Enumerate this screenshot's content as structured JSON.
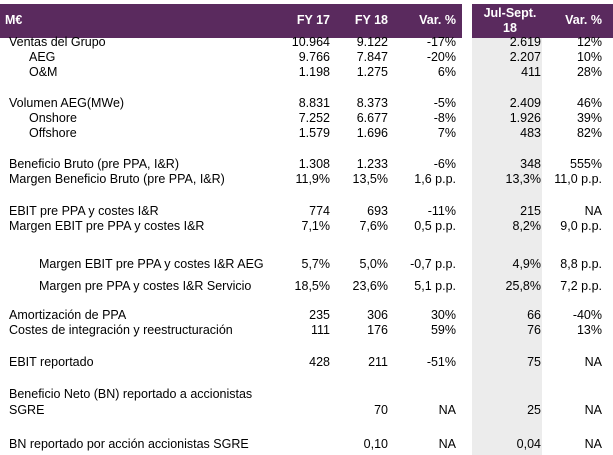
{
  "header": {
    "label": "M€",
    "fy17": "FY 17",
    "fy18": "FY 18",
    "var": "Var. %",
    "q_line1": "Jul-Sept.",
    "q_line2": "18",
    "q_var": "Var. %"
  },
  "rows": [
    {
      "indent": 0,
      "label": "Ventas del Grupo",
      "fy17": "10.964",
      "fy18": "9.122",
      "var": "-17%",
      "q": "2.619",
      "qvar": "12%"
    },
    {
      "indent": 1,
      "label": "AEG",
      "fy17": "9.766",
      "fy18": "7.847",
      "var": "-20%",
      "q": "2.207",
      "qvar": "10%"
    },
    {
      "indent": 1,
      "label": "O&M",
      "fy17": "1.198",
      "fy18": "1.275",
      "var": "6%",
      "q": "411",
      "qvar": "28%"
    },
    {
      "indent": 0,
      "label": "Volumen AEG(MWe)",
      "fy17": "8.831",
      "fy18": "8.373",
      "var": "-5%",
      "q": "2.409",
      "qvar": "46%"
    },
    {
      "indent": 1,
      "label": "Onshore",
      "fy17": "7.252",
      "fy18": "6.677",
      "var": "-8%",
      "q": "1.926",
      "qvar": "39%"
    },
    {
      "indent": 1,
      "label": "Offshore",
      "fy17": "1.579",
      "fy18": "1.696",
      "var": "7%",
      "q": "483",
      "qvar": "82%"
    },
    {
      "indent": 0,
      "label": "Beneficio Bruto (pre PPA, I&R)",
      "fy17": "1.308",
      "fy18": "1.233",
      "var": "-6%",
      "q": "348",
      "qvar": "555%"
    },
    {
      "indent": 0,
      "label": "Margen Beneficio Bruto (pre PPA, I&R)",
      "fy17": "11,9%",
      "fy18": "13,5%",
      "var": "1,6 p.p.",
      "q": "13,3%",
      "qvar": "11,0 p.p."
    },
    {
      "indent": 0,
      "label": "EBIT pre PPA y costes I&R",
      "fy17": "774",
      "fy18": "693",
      "var": "-11%",
      "q": "215",
      "qvar": "NA"
    },
    {
      "indent": 0,
      "label": "Margen EBIT pre PPA y costes I&R",
      "fy17": "7,1%",
      "fy18": "7,6%",
      "var": "0,5 p.p.",
      "q": "8,2%",
      "qvar": "9,0 p.p."
    },
    {
      "indent": 2,
      "label": "Margen EBIT pre PPA y costes I&R AEG",
      "fy17": "5,7%",
      "fy18": "5,0%",
      "var": "-0,7 p.p.",
      "q": "4,9%",
      "qvar": "8,8 p.p."
    },
    {
      "indent": 2,
      "label": "Margen pre PPA y costes I&R Servicio",
      "fy17": "18,5%",
      "fy18": "23,6%",
      "var": "5,1 p.p.",
      "q": "25,8%",
      "qvar": "7,2 p.p."
    },
    {
      "indent": 0,
      "label": "Amortización de PPA",
      "fy17": "235",
      "fy18": "306",
      "var": "30%",
      "q": "66",
      "qvar": "-40%"
    },
    {
      "indent": 0,
      "label": "Costes de integración y reestructuración",
      "fy17": "111",
      "fy18": "176",
      "var": "59%",
      "q": "76",
      "qvar": "13%"
    },
    {
      "indent": 0,
      "label": "EBIT reportado",
      "fy17": "428",
      "fy18": "211",
      "var": "-51%",
      "q": "75",
      "qvar": "NA"
    },
    {
      "indent": 0,
      "label": "Beneficio Neto (BN) reportado a accionistas",
      "label2": "SGRE",
      "fy17": "",
      "fy18": "70",
      "var": "NA",
      "q": "25",
      "qvar": "NA"
    },
    {
      "indent": 0,
      "label": "BN reportado por acción accionistas SGRE",
      "fy17": "",
      "fy18": "0,10",
      "var": "NA",
      "q": "0,04",
      "qvar": "NA"
    }
  ]
}
